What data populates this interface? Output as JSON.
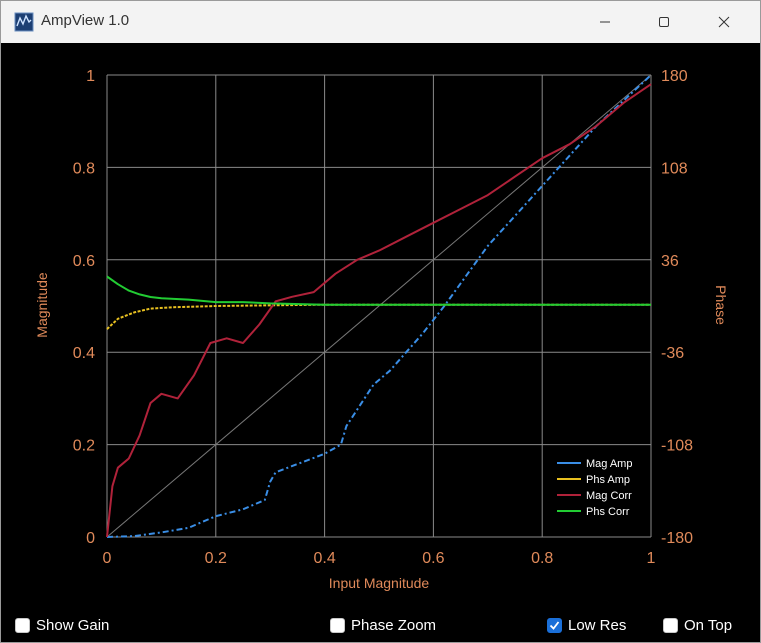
{
  "window": {
    "title": "AmpView 1.0"
  },
  "chart_data": {
    "type": "line",
    "xlabel": "Input Magnitude",
    "ylabel": "Magnitude",
    "y2label": "Phase",
    "xlim": [
      0,
      1
    ],
    "ylim": [
      0,
      1
    ],
    "y2lim": [
      -180,
      180
    ],
    "x_ticks": [
      "0",
      "0.2",
      "0.4",
      "0.6",
      "0.8",
      "1"
    ],
    "y_ticks": [
      "0",
      "0.2",
      "0.4",
      "0.6",
      "0.8",
      "1"
    ],
    "y2_ticks": [
      "-180",
      "-108",
      "-36",
      "36",
      "108",
      "180"
    ],
    "grid": true,
    "legend_position": "bottom-right",
    "series": [
      {
        "name": "Mag Amp",
        "color": "#3a8ee6",
        "style": "dotted-dash",
        "x": [
          0,
          0.05,
          0.1,
          0.15,
          0.17,
          0.2,
          0.25,
          0.29,
          0.3,
          0.31,
          0.4,
          0.43,
          0.44,
          0.49,
          0.52,
          0.55,
          0.58,
          0.6,
          0.62,
          0.7,
          0.8,
          0.9,
          1.0
        ],
        "y": [
          0,
          0.002,
          0.01,
          0.02,
          0.03,
          0.045,
          0.06,
          0.08,
          0.12,
          0.14,
          0.18,
          0.2,
          0.24,
          0.33,
          0.36,
          0.4,
          0.44,
          0.47,
          0.5,
          0.63,
          0.76,
          0.89,
          1.0
        ]
      },
      {
        "name": "Phs Amp",
        "color": "#e8c020",
        "style": "dotted",
        "x": [
          0,
          0.02,
          0.05,
          0.08,
          0.12,
          0.2,
          0.4,
          0.6,
          0.8,
          1.0
        ],
        "y": [
          -18,
          -10,
          -5,
          -2,
          -1,
          0,
          1,
          1,
          1,
          1
        ]
      },
      {
        "name": "Mag Corr",
        "color": "#b0223a",
        "style": "solid",
        "x": [
          0,
          0.01,
          0.02,
          0.04,
          0.06,
          0.08,
          0.1,
          0.13,
          0.16,
          0.19,
          0.22,
          0.25,
          0.28,
          0.31,
          0.34,
          0.38,
          0.42,
          0.46,
          0.5,
          0.55,
          0.6,
          0.65,
          0.7,
          0.75,
          0.8,
          0.85,
          0.9,
          0.95,
          1.0
        ],
        "y": [
          0,
          0.11,
          0.15,
          0.17,
          0.22,
          0.29,
          0.31,
          0.3,
          0.35,
          0.42,
          0.43,
          0.42,
          0.46,
          0.51,
          0.52,
          0.53,
          0.57,
          0.6,
          0.62,
          0.65,
          0.68,
          0.71,
          0.74,
          0.78,
          0.82,
          0.85,
          0.89,
          0.94,
          0.98
        ]
      },
      {
        "name": "Phs Corr",
        "color": "#22cc33",
        "style": "solid",
        "x": [
          0,
          0.02,
          0.04,
          0.06,
          0.08,
          0.1,
          0.15,
          0.2,
          0.25,
          0.3,
          0.4,
          0.5,
          0.6,
          0.8,
          1.0
        ],
        "y": [
          23,
          17,
          12,
          9,
          7,
          6,
          5,
          3,
          3,
          2,
          1,
          1,
          1,
          1,
          1
        ]
      }
    ]
  },
  "controls": {
    "show_gain": {
      "label": "Show Gain",
      "checked": false
    },
    "phase_zoom": {
      "label": "Phase Zoom",
      "checked": false
    },
    "low_res": {
      "label": "Low Res",
      "checked": true
    },
    "on_top": {
      "label": "On Top",
      "checked": false
    }
  }
}
